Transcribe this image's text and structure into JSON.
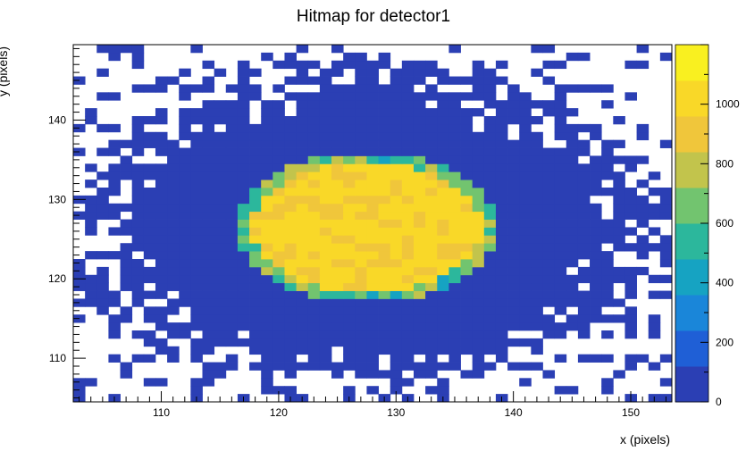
{
  "chart_data": {
    "type": "heatmap",
    "title": "Hitmap for detector1",
    "xlabel": "x (pixels)",
    "ylabel": "y (pixels)",
    "xlim": [
      102.5,
      153.5
    ],
    "ylim": [
      104.5,
      149.5
    ],
    "x_ticks": [
      "110",
      "120",
      "130",
      "140",
      "150"
    ],
    "y_ticks": [
      "110",
      "120",
      "130",
      "140"
    ],
    "colorbar": {
      "range": [
        0,
        1200
      ],
      "ticks": [
        "0",
        "200",
        "400",
        "600",
        "800",
        "1000"
      ]
    },
    "distribution": {
      "description_units": "pixels",
      "peak_center_x": 127.5,
      "peak_center_y": 126.5,
      "core_radius_x": 9.8,
      "core_radius_y": 8.4,
      "peak_value": 1000,
      "halo_radius_x": 21,
      "halo_radius_y": 17,
      "background_value": 10
    },
    "grid": false,
    "colormap": [
      "#2b3fb4",
      "#1f5fd6",
      "#1a86d9",
      "#16a3c2",
      "#2cb79c",
      "#72c46f",
      "#c2c44c",
      "#f0c63b",
      "#f9d828",
      "#f9f020"
    ]
  }
}
